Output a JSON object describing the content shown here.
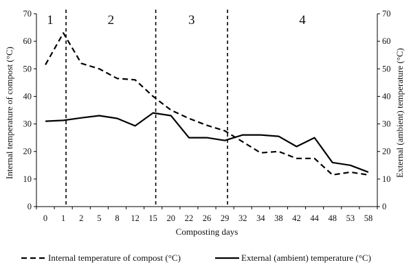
{
  "chart_data": {
    "type": "line",
    "xlabel": "Composting days",
    "ylabel_left": "Internal temperature of compost (°C)",
    "ylabel_right": "External (ambient) temperature (°C)",
    "ylim": [
      0,
      70
    ],
    "yticks": [
      0,
      10,
      20,
      30,
      40,
      50,
      60,
      70
    ],
    "categories": [
      "0",
      "1",
      "2",
      "5",
      "8",
      "12",
      "15",
      "20",
      "22",
      "26",
      "29",
      "32",
      "34",
      "38",
      "42",
      "44",
      "48",
      "53",
      "58"
    ],
    "phase_labels": [
      "1",
      "2",
      "3",
      "4"
    ],
    "phase_boundaries_after": [
      "1",
      "15",
      "29"
    ],
    "series": [
      {
        "name": "Internal temperature of compost (°C)",
        "style": "dashed",
        "values": [
          51.5,
          63,
          52,
          50,
          46.5,
          46,
          40,
          35,
          32,
          29.5,
          27.5,
          23.5,
          19.5,
          20,
          17.5,
          17.5,
          11.5,
          12.5,
          11.5
        ]
      },
      {
        "name": "External (ambient) temperature (°C)",
        "style": "solid",
        "values": [
          31,
          31.3,
          32.2,
          33,
          32,
          29.3,
          34,
          33,
          25,
          25,
          24,
          26,
          26,
          25.5,
          21.8,
          25,
          16,
          15,
          12.5
        ]
      }
    ],
    "legend_position": "bottom",
    "grid": false,
    "line_color": "#000000"
  }
}
